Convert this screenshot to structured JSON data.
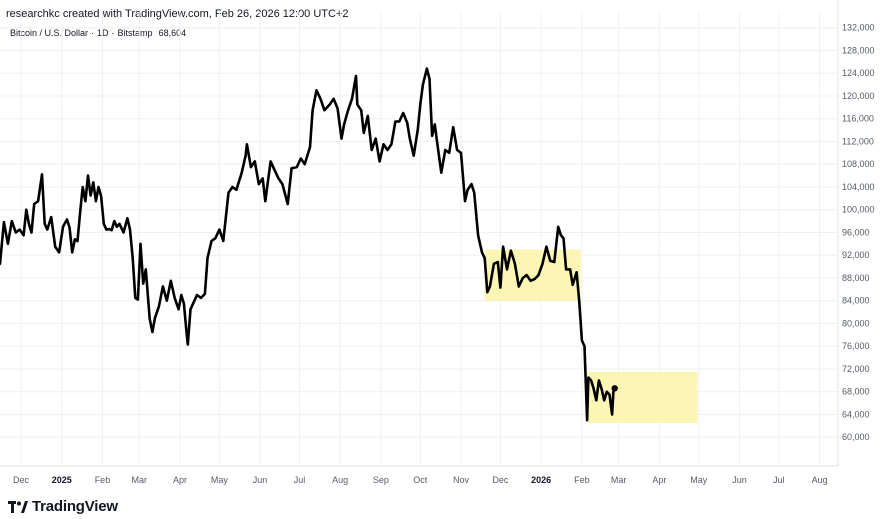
{
  "header": {
    "credit": "researchkc created with TradingView.com, Feb 26, 2026 12:00 UTC+2"
  },
  "symbol": {
    "name": "Bitcoin / U.S. Dollar",
    "interval": "1D",
    "exchange": "Bitstamp",
    "last_price": "68,604"
  },
  "brand": {
    "name": "TradingView"
  },
  "colors": {
    "line": "#000000",
    "highlight": "#fbf6b4",
    "grid": "#eef0f3"
  },
  "chart_data": {
    "type": "line",
    "title": "",
    "xlabel": "",
    "ylabel": "",
    "ylim": [
      56000,
      133000
    ],
    "y_ticks": [
      "132,000",
      "128,000",
      "124,000",
      "120,000",
      "116,000",
      "112,000",
      "108,000",
      "104,000",
      "100,000",
      "96,000",
      "92,000",
      "88,000",
      "84,000",
      "80,000",
      "76,000",
      "72,000",
      "68,000",
      "64,000",
      "60,000"
    ],
    "x_ticks": [
      {
        "label": "Dec",
        "date": "2024-12-01"
      },
      {
        "label": "2025",
        "date": "2025-01-01",
        "bold": true
      },
      {
        "label": "Feb",
        "date": "2025-02-01"
      },
      {
        "label": "Mar",
        "date": "2025-03-01"
      },
      {
        "label": "Apr",
        "date": "2025-04-01"
      },
      {
        "label": "May",
        "date": "2025-05-01"
      },
      {
        "label": "Jun",
        "date": "2025-06-01"
      },
      {
        "label": "Jul",
        "date": "2025-07-01"
      },
      {
        "label": "Aug",
        "date": "2025-08-01"
      },
      {
        "label": "Sep",
        "date": "2025-09-01"
      },
      {
        "label": "Oct",
        "date": "2025-10-01"
      },
      {
        "label": "Nov",
        "date": "2025-11-01"
      },
      {
        "label": "Dec",
        "date": "2025-12-01"
      },
      {
        "label": "2026",
        "date": "2026-01-01",
        "bold": true
      },
      {
        "label": "Feb",
        "date": "2026-02-01"
      },
      {
        "label": "Mar",
        "date": "2026-03-01"
      },
      {
        "label": "Apr",
        "date": "2026-04-01"
      },
      {
        "label": "May",
        "date": "2026-05-01"
      },
      {
        "label": "Jun",
        "date": "2026-06-01"
      },
      {
        "label": "Jul",
        "date": "2026-07-01"
      },
      {
        "label": "Aug",
        "date": "2026-08-01"
      }
    ],
    "x_range": [
      "2024-11-15",
      "2026-08-15"
    ],
    "series": [
      {
        "values": [
          [
            "2024-11-15",
            90500
          ],
          [
            "2024-11-18",
            97800
          ],
          [
            "2024-11-21",
            94000
          ],
          [
            "2024-11-24",
            98000
          ],
          [
            "2024-11-27",
            96000
          ],
          [
            "2024-11-30",
            96500
          ],
          [
            "2024-12-03",
            95500
          ],
          [
            "2024-12-05",
            100000
          ],
          [
            "2024-12-07",
            97500
          ],
          [
            "2024-12-09",
            96000
          ],
          [
            "2024-12-11",
            101000
          ],
          [
            "2024-12-14",
            101500
          ],
          [
            "2024-12-17",
            106200
          ],
          [
            "2024-12-19",
            97500
          ],
          [
            "2024-12-21",
            96500
          ],
          [
            "2024-12-24",
            98700
          ],
          [
            "2024-12-27",
            93500
          ],
          [
            "2024-12-30",
            92500
          ],
          [
            "2025-01-02",
            97000
          ],
          [
            "2025-01-05",
            98300
          ],
          [
            "2025-01-07",
            96800
          ],
          [
            "2025-01-09",
            92500
          ],
          [
            "2025-01-11",
            94800
          ],
          [
            "2025-01-13",
            94500
          ],
          [
            "2025-01-15",
            99500
          ],
          [
            "2025-01-17",
            104000
          ],
          [
            "2025-01-19",
            101500
          ],
          [
            "2025-01-21",
            106000
          ],
          [
            "2025-01-23",
            102500
          ],
          [
            "2025-01-25",
            104800
          ],
          [
            "2025-01-27",
            101500
          ],
          [
            "2025-01-29",
            104000
          ],
          [
            "2025-01-31",
            102400
          ],
          [
            "2025-02-02",
            97500
          ],
          [
            "2025-02-04",
            96500
          ],
          [
            "2025-02-06",
            96600
          ],
          [
            "2025-02-08",
            96400
          ],
          [
            "2025-02-10",
            98000
          ],
          [
            "2025-02-12",
            97000
          ],
          [
            "2025-02-14",
            97500
          ],
          [
            "2025-02-17",
            96000
          ],
          [
            "2025-02-20",
            98500
          ],
          [
            "2025-02-22",
            96500
          ],
          [
            "2025-02-24",
            91500
          ],
          [
            "2025-02-26",
            84500
          ],
          [
            "2025-02-28",
            84200
          ],
          [
            "2025-03-02",
            94000
          ],
          [
            "2025-03-04",
            87000
          ],
          [
            "2025-03-06",
            89500
          ],
          [
            "2025-03-09",
            80800
          ],
          [
            "2025-03-11",
            78500
          ],
          [
            "2025-03-13",
            81000
          ],
          [
            "2025-03-16",
            83000
          ],
          [
            "2025-03-19",
            86500
          ],
          [
            "2025-03-22",
            84000
          ],
          [
            "2025-03-25",
            87500
          ],
          [
            "2025-03-28",
            84500
          ],
          [
            "2025-03-31",
            82500
          ],
          [
            "2025-04-02",
            85000
          ],
          [
            "2025-04-04",
            83500
          ],
          [
            "2025-04-06",
            78500
          ],
          [
            "2025-04-07",
            76300
          ],
          [
            "2025-04-09",
            82500
          ],
          [
            "2025-04-11",
            83500
          ],
          [
            "2025-04-14",
            85000
          ],
          [
            "2025-04-17",
            84500
          ],
          [
            "2025-04-20",
            85200
          ],
          [
            "2025-04-22",
            91500
          ],
          [
            "2025-04-25",
            94500
          ],
          [
            "2025-04-28",
            95000
          ],
          [
            "2025-05-01",
            96500
          ],
          [
            "2025-05-04",
            94500
          ],
          [
            "2025-05-08",
            103000
          ],
          [
            "2025-05-11",
            104000
          ],
          [
            "2025-05-14",
            103500
          ],
          [
            "2025-05-18",
            106500
          ],
          [
            "2025-05-21",
            109500
          ],
          [
            "2025-05-22",
            111500
          ],
          [
            "2025-05-25",
            107500
          ],
          [
            "2025-05-28",
            108500
          ],
          [
            "2025-05-31",
            104500
          ],
          [
            "2025-06-03",
            105500
          ],
          [
            "2025-06-05",
            101500
          ],
          [
            "2025-06-09",
            108500
          ],
          [
            "2025-06-12",
            107000
          ],
          [
            "2025-06-15",
            105500
          ],
          [
            "2025-06-18",
            104500
          ],
          [
            "2025-06-22",
            101000
          ],
          [
            "2025-06-25",
            107300
          ],
          [
            "2025-06-29",
            107500
          ],
          [
            "2025-07-02",
            109000
          ],
          [
            "2025-07-05",
            108000
          ],
          [
            "2025-07-09",
            111000
          ],
          [
            "2025-07-11",
            117500
          ],
          [
            "2025-07-14",
            121000
          ],
          [
            "2025-07-17",
            119500
          ],
          [
            "2025-07-20",
            117500
          ],
          [
            "2025-07-24",
            118500
          ],
          [
            "2025-07-27",
            119500
          ],
          [
            "2025-07-30",
            117800
          ],
          [
            "2025-08-02",
            112500
          ],
          [
            "2025-08-04",
            115000
          ],
          [
            "2025-08-07",
            117500
          ],
          [
            "2025-08-10",
            119500
          ],
          [
            "2025-08-13",
            123500
          ],
          [
            "2025-08-14",
            118500
          ],
          [
            "2025-08-17",
            117500
          ],
          [
            "2025-08-19",
            113500
          ],
          [
            "2025-08-22",
            116500
          ],
          [
            "2025-08-25",
            110500
          ],
          [
            "2025-08-28",
            112500
          ],
          [
            "2025-08-31",
            108500
          ],
          [
            "2025-09-03",
            111500
          ],
          [
            "2025-09-06",
            110500
          ],
          [
            "2025-09-09",
            111500
          ],
          [
            "2025-09-12",
            115500
          ],
          [
            "2025-09-15",
            115500
          ],
          [
            "2025-09-18",
            117000
          ],
          [
            "2025-09-21",
            115300
          ],
          [
            "2025-09-23",
            112500
          ],
          [
            "2025-09-26",
            109500
          ],
          [
            "2025-09-29",
            114000
          ],
          [
            "2025-10-01",
            118500
          ],
          [
            "2025-10-03",
            122000
          ],
          [
            "2025-10-06",
            124800
          ],
          [
            "2025-10-08",
            123000
          ],
          [
            "2025-10-10",
            113000
          ],
          [
            "2025-10-12",
            115000
          ],
          [
            "2025-10-14",
            111500
          ],
          [
            "2025-10-17",
            106500
          ],
          [
            "2025-10-20",
            110500
          ],
          [
            "2025-10-23",
            110000
          ],
          [
            "2025-10-26",
            114500
          ],
          [
            "2025-10-29",
            110500
          ],
          [
            "2025-11-01",
            110000
          ],
          [
            "2025-11-04",
            101500
          ],
          [
            "2025-11-06",
            103500
          ],
          [
            "2025-11-09",
            104500
          ],
          [
            "2025-11-11",
            103000
          ],
          [
            "2025-11-14",
            95500
          ],
          [
            "2025-11-17",
            92500
          ],
          [
            "2025-11-19",
            91500
          ],
          [
            "2025-11-21",
            85500
          ],
          [
            "2025-11-23",
            86500
          ],
          [
            "2025-11-26",
            90500
          ],
          [
            "2025-11-29",
            90800
          ],
          [
            "2025-12-01",
            86300
          ],
          [
            "2025-12-03",
            93500
          ],
          [
            "2025-12-06",
            89500
          ],
          [
            "2025-12-09",
            92800
          ],
          [
            "2025-12-12",
            90500
          ],
          [
            "2025-12-15",
            86500
          ],
          [
            "2025-12-18",
            88000
          ],
          [
            "2025-12-21",
            88500
          ],
          [
            "2025-12-24",
            87500
          ],
          [
            "2025-12-27",
            87800
          ],
          [
            "2025-12-30",
            88500
          ],
          [
            "2026-01-02",
            90500
          ],
          [
            "2026-01-05",
            93500
          ],
          [
            "2026-01-08",
            91000
          ],
          [
            "2026-01-11",
            90800
          ],
          [
            "2026-01-14",
            97000
          ],
          [
            "2026-01-16",
            95500
          ],
          [
            "2026-01-18",
            95000
          ],
          [
            "2026-01-20",
            89500
          ],
          [
            "2026-01-23",
            89500
          ],
          [
            "2026-01-25",
            86800
          ],
          [
            "2026-01-28",
            89000
          ],
          [
            "2026-01-30",
            84000
          ],
          [
            "2026-02-01",
            77000
          ],
          [
            "2026-02-03",
            76000
          ],
          [
            "2026-02-05",
            63000
          ],
          [
            "2026-02-06",
            70500
          ],
          [
            "2026-02-08",
            70000
          ],
          [
            "2026-02-10",
            68500
          ],
          [
            "2026-02-12",
            66500
          ],
          [
            "2026-02-14",
            70000
          ],
          [
            "2026-02-16",
            68500
          ],
          [
            "2026-02-18",
            66500
          ],
          [
            "2026-02-20",
            68000
          ],
          [
            "2026-02-22",
            67500
          ],
          [
            "2026-02-24",
            64000
          ],
          [
            "2026-02-25",
            68000
          ],
          [
            "2026-02-26",
            68604
          ]
        ]
      }
    ],
    "highlight_zones": [
      {
        "x0": "2025-11-19",
        "x1": "2026-01-31",
        "y0": 84000,
        "y1": 93000
      },
      {
        "x0": "2026-02-05",
        "x1": "2026-04-30",
        "y0": 62500,
        "y1": 71500
      }
    ],
    "grid": true,
    "legend": "none"
  }
}
